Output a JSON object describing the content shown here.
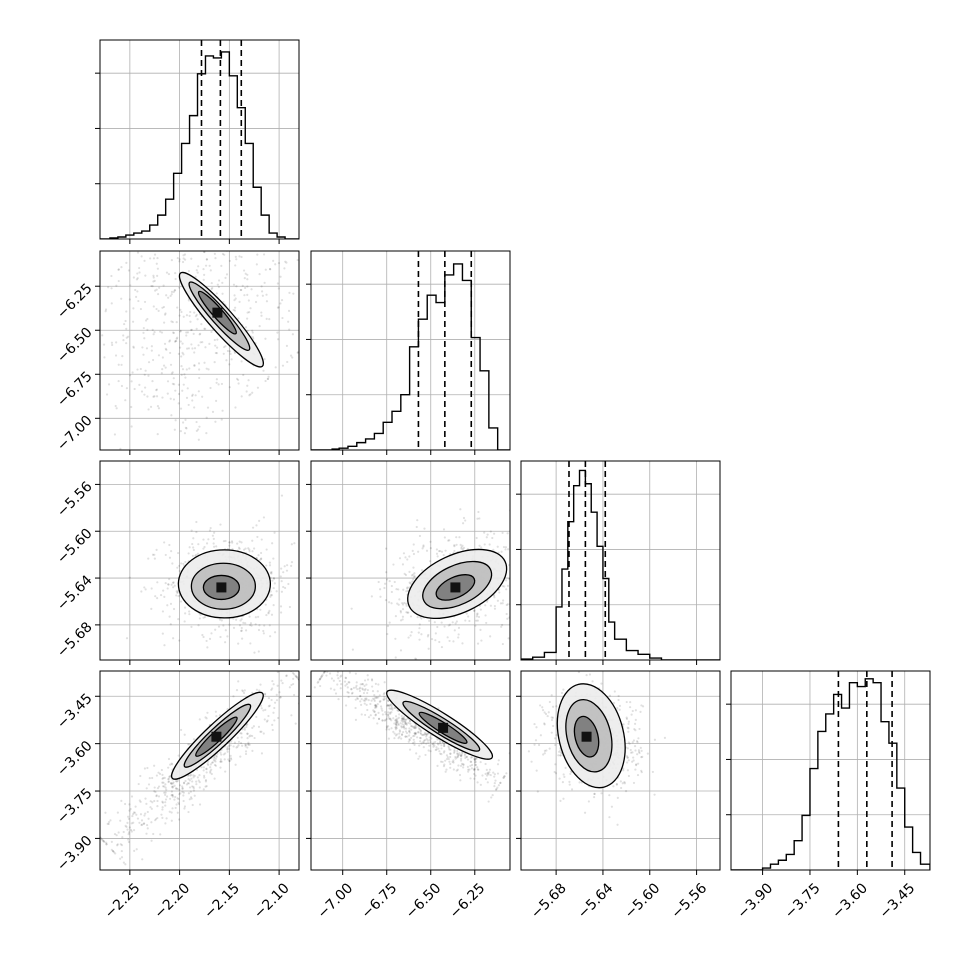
{
  "figure": {
    "background_color": "#ffffff",
    "line_color": "#000000",
    "grid_color": "#b0b0b0"
  },
  "chart_data": [
    {
      "type": "histogram",
      "panel": "diag-0",
      "parameter_index": 0,
      "xlim": [
        -2.28,
        -2.08
      ],
      "bins": [
        {
          "x0": -2.28,
          "x1": -2.27,
          "y": 0
        },
        {
          "x0": -2.27,
          "x1": -2.262,
          "y": 0.5
        },
        {
          "x0": -2.262,
          "x1": -2.254,
          "y": 1
        },
        {
          "x0": -2.254,
          "x1": -2.246,
          "y": 2
        },
        {
          "x0": -2.246,
          "x1": -2.238,
          "y": 3
        },
        {
          "x0": -2.238,
          "x1": -2.23,
          "y": 4
        },
        {
          "x0": -2.23,
          "x1": -2.222,
          "y": 7
        },
        {
          "x0": -2.222,
          "x1": -2.214,
          "y": 12
        },
        {
          "x0": -2.214,
          "x1": -2.206,
          "y": 20
        },
        {
          "x0": -2.206,
          "x1": -2.198,
          "y": 33
        },
        {
          "x0": -2.198,
          "x1": -2.19,
          "y": 48
        },
        {
          "x0": -2.19,
          "x1": -2.182,
          "y": 62
        },
        {
          "x0": -2.182,
          "x1": -2.174,
          "y": 83
        },
        {
          "x0": -2.174,
          "x1": -2.166,
          "y": 92
        },
        {
          "x0": -2.166,
          "x1": -2.158,
          "y": 91
        },
        {
          "x0": -2.158,
          "x1": -2.15,
          "y": 94
        },
        {
          "x0": -2.15,
          "x1": -2.142,
          "y": 82
        },
        {
          "x0": -2.142,
          "x1": -2.134,
          "y": 66
        },
        {
          "x0": -2.134,
          "x1": -2.126,
          "y": 48
        },
        {
          "x0": -2.126,
          "x1": -2.118,
          "y": 26
        },
        {
          "x0": -2.118,
          "x1": -2.11,
          "y": 12
        },
        {
          "x0": -2.11,
          "x1": -2.102,
          "y": 3
        },
        {
          "x0": -2.102,
          "x1": -2.094,
          "y": 1
        },
        {
          "x0": -2.094,
          "x1": -2.08,
          "y": 0
        }
      ],
      "ymax": 100,
      "quantiles": [
        -2.178,
        -2.159,
        -2.138
      ],
      "grid": true
    },
    {
      "type": "histogram",
      "panel": "diag-1",
      "parameter_index": 1,
      "xlim": [
        -7.18,
        -6.05
      ],
      "bins": [
        {
          "x0": -7.18,
          "x1": -7.06,
          "y": 0
        },
        {
          "x0": -7.06,
          "x1": -7.02,
          "y": 0.5
        },
        {
          "x0": -7.02,
          "x1": -6.97,
          "y": 1
        },
        {
          "x0": -6.97,
          "x1": -6.92,
          "y": 2
        },
        {
          "x0": -6.92,
          "x1": -6.87,
          "y": 4
        },
        {
          "x0": -6.87,
          "x1": -6.82,
          "y": 6
        },
        {
          "x0": -6.82,
          "x1": -6.77,
          "y": 9
        },
        {
          "x0": -6.77,
          "x1": -6.72,
          "y": 15
        },
        {
          "x0": -6.72,
          "x1": -6.67,
          "y": 21
        },
        {
          "x0": -6.67,
          "x1": -6.62,
          "y": 30
        },
        {
          "x0": -6.62,
          "x1": -6.57,
          "y": 56
        },
        {
          "x0": -6.57,
          "x1": -6.52,
          "y": 71
        },
        {
          "x0": -6.52,
          "x1": -6.47,
          "y": 84
        },
        {
          "x0": -6.47,
          "x1": -6.42,
          "y": 80
        },
        {
          "x0": -6.42,
          "x1": -6.37,
          "y": 95
        },
        {
          "x0": -6.37,
          "x1": -6.32,
          "y": 101
        },
        {
          "x0": -6.32,
          "x1": -6.27,
          "y": 92
        },
        {
          "x0": -6.27,
          "x1": -6.22,
          "y": 61
        },
        {
          "x0": -6.22,
          "x1": -6.17,
          "y": 43
        },
        {
          "x0": -6.17,
          "x1": -6.12,
          "y": 12
        },
        {
          "x0": -6.12,
          "x1": -6.05,
          "y": 0
        }
      ],
      "ymax": 108,
      "quantiles": [
        -6.57,
        -6.42,
        -6.27
      ],
      "grid": true
    },
    {
      "type": "histogram",
      "panel": "diag-2",
      "parameter_index": 2,
      "xlim": [
        -5.71,
        -5.54
      ],
      "bins": [
        {
          "x0": -5.71,
          "x1": -5.7,
          "y": 0.5
        },
        {
          "x0": -5.7,
          "x1": -5.69,
          "y": 1.5
        },
        {
          "x0": -5.69,
          "x1": -5.68,
          "y": 4
        },
        {
          "x0": -5.68,
          "x1": -5.675,
          "y": 28
        },
        {
          "x0": -5.675,
          "x1": -5.67,
          "y": 48
        },
        {
          "x0": -5.67,
          "x1": -5.665,
          "y": 73
        },
        {
          "x0": -5.665,
          "x1": -5.66,
          "y": 92
        },
        {
          "x0": -5.66,
          "x1": -5.655,
          "y": 100
        },
        {
          "x0": -5.655,
          "x1": -5.65,
          "y": 93
        },
        {
          "x0": -5.65,
          "x1": -5.645,
          "y": 78
        },
        {
          "x0": -5.645,
          "x1": -5.64,
          "y": 60
        },
        {
          "x0": -5.64,
          "x1": -5.635,
          "y": 43
        },
        {
          "x0": -5.635,
          "x1": -5.63,
          "y": 20
        },
        {
          "x0": -5.63,
          "x1": -5.62,
          "y": 11
        },
        {
          "x0": -5.62,
          "x1": -5.61,
          "y": 5
        },
        {
          "x0": -5.61,
          "x1": -5.6,
          "y": 3
        },
        {
          "x0": -5.6,
          "x1": -5.59,
          "y": 1
        },
        {
          "x0": -5.59,
          "x1": -5.54,
          "y": 0
        }
      ],
      "ymax": 105,
      "quantiles": [
        -5.669,
        -5.655,
        -5.638
      ],
      "grid": true
    },
    {
      "type": "histogram",
      "panel": "diag-3",
      "parameter_index": 3,
      "xlim": [
        -4.0,
        -3.37
      ],
      "bins": [
        {
          "x0": -4.0,
          "x1": -3.9,
          "y": 0
        },
        {
          "x0": -3.9,
          "x1": -3.875,
          "y": 1
        },
        {
          "x0": -3.875,
          "x1": -3.85,
          "y": 3
        },
        {
          "x0": -3.85,
          "x1": -3.825,
          "y": 5
        },
        {
          "x0": -3.825,
          "x1": -3.8,
          "y": 8
        },
        {
          "x0": -3.8,
          "x1": -3.775,
          "y": 15
        },
        {
          "x0": -3.775,
          "x1": -3.75,
          "y": 28
        },
        {
          "x0": -3.75,
          "x1": -3.725,
          "y": 52
        },
        {
          "x0": -3.725,
          "x1": -3.7,
          "y": 71
        },
        {
          "x0": -3.7,
          "x1": -3.675,
          "y": 80
        },
        {
          "x0": -3.675,
          "x1": -3.65,
          "y": 90
        },
        {
          "x0": -3.65,
          "x1": -3.625,
          "y": 83
        },
        {
          "x0": -3.625,
          "x1": -3.6,
          "y": 96
        },
        {
          "x0": -3.6,
          "x1": -3.575,
          "y": 94
        },
        {
          "x0": -3.575,
          "x1": -3.55,
          "y": 98
        },
        {
          "x0": -3.55,
          "x1": -3.525,
          "y": 96
        },
        {
          "x0": -3.525,
          "x1": -3.5,
          "y": 76
        },
        {
          "x0": -3.5,
          "x1": -3.475,
          "y": 65
        },
        {
          "x0": -3.475,
          "x1": -3.45,
          "y": 42
        },
        {
          "x0": -3.45,
          "x1": -3.425,
          "y": 22
        },
        {
          "x0": -3.425,
          "x1": -3.4,
          "y": 9
        },
        {
          "x0": -3.4,
          "x1": -3.37,
          "y": 3
        }
      ],
      "ymax": 102,
      "quantiles": [
        -3.66,
        -3.57,
        -3.49
      ],
      "grid": true
    },
    {
      "type": "scatter-density",
      "panel": "pair-1-0",
      "x_param": 0,
      "y_param": 1,
      "xlim": [
        -2.28,
        -2.08
      ],
      "ylim": [
        -7.18,
        -6.05
      ],
      "scatter": {
        "kind": "line",
        "x0": -2.24,
        "y0": -6.05,
        "x1": -2.12,
        "y1": -6.82,
        "spread_perp": 0.065,
        "spread_along": 0.16,
        "n": 650,
        "curve": 0.035
      },
      "contours": [
        {
          "level": "outer",
          "cx": -2.158,
          "cy": -6.44,
          "rx": 0.085,
          "ry": 0.018,
          "angle_deg": 45
        },
        {
          "level": "mid",
          "cx": -2.16,
          "cy": -6.42,
          "rx": 0.062,
          "ry": 0.012,
          "angle_deg": 45
        },
        {
          "level": "inner",
          "cx": -2.162,
          "cy": -6.4,
          "rx": 0.038,
          "ry": 0.008,
          "angle_deg": 45
        }
      ],
      "x_ticks": [
        -2.25,
        -2.2,
        -2.15,
        -2.1
      ],
      "y_ticks": [
        -6.25,
        -6.5,
        -6.75,
        -7.0
      ],
      "y_tick_labels": [
        "−6.25",
        "−6.50",
        "−6.75",
        "−7.00"
      ],
      "grid": true
    },
    {
      "type": "scatter-density",
      "panel": "pair-2-0",
      "x_param": 0,
      "y_param": 2,
      "xlim": [
        -2.28,
        -2.08
      ],
      "ylim": [
        -5.71,
        -5.54
      ],
      "scatter": {
        "kind": "ellipse",
        "cx": -2.15,
        "cy": -5.645,
        "sx": 0.032,
        "sy": 0.022,
        "n": 650
      },
      "contours": [
        {
          "level": "outer",
          "cx": -2.155,
          "cy": -5.645,
          "rx": 0.045,
          "ry": 0.025,
          "angle_deg": 0
        },
        {
          "level": "mid",
          "cx": -2.156,
          "cy": -5.647,
          "rx": 0.032,
          "ry": 0.017,
          "angle_deg": 0
        },
        {
          "level": "inner",
          "cx": -2.158,
          "cy": -5.648,
          "rx": 0.018,
          "ry": 0.009,
          "angle_deg": 0
        }
      ],
      "x_ticks": [
        -2.25,
        -2.2,
        -2.15,
        -2.1
      ],
      "y_ticks": [
        -5.56,
        -5.6,
        -5.64,
        -5.68
      ],
      "y_tick_labels": [
        "−5.56",
        "−5.60",
        "−5.64",
        "−5.68"
      ],
      "grid": true
    },
    {
      "type": "scatter-density",
      "panel": "pair-2-1",
      "x_param": 1,
      "y_param": 2,
      "xlim": [
        -7.18,
        -6.05
      ],
      "ylim": [
        -5.71,
        -5.54
      ],
      "scatter": {
        "kind": "ellipse",
        "cx": -6.35,
        "cy": -5.645,
        "sx": 0.2,
        "sy": 0.022,
        "n": 650,
        "tilt": 0.5
      },
      "contours": [
        {
          "level": "outer",
          "cx": -6.35,
          "cy": -5.645,
          "rx": 0.28,
          "ry": 0.026,
          "angle_deg": -25
        },
        {
          "level": "mid",
          "cx": -6.35,
          "cy": -5.646,
          "rx": 0.19,
          "ry": 0.017,
          "angle_deg": -25
        },
        {
          "level": "inner",
          "cx": -6.36,
          "cy": -5.648,
          "rx": 0.1,
          "ry": 0.009,
          "angle_deg": -25
        }
      ],
      "x_ticks": [
        -7.0,
        -6.75,
        -6.5,
        -6.25
      ],
      "y_ticks": [
        -5.56,
        -5.6,
        -5.64,
        -5.68
      ],
      "grid": true
    },
    {
      "type": "scatter-density",
      "panel": "pair-3-0",
      "x_param": 0,
      "y_param": 3,
      "xlim": [
        -2.28,
        -2.08
      ],
      "ylim": [
        -4.0,
        -3.37
      ],
      "scatter": {
        "kind": "line",
        "x0": -2.27,
        "y0": -3.93,
        "x1": -2.085,
        "y1": -3.38,
        "spread_perp": 0.012,
        "spread_along": 0.05,
        "n": 650,
        "curve": 0.0
      },
      "contours": [
        {
          "level": "outer",
          "cx": -2.162,
          "cy": -3.575,
          "rx": 0.075,
          "ry": 0.012,
          "angle_deg": -60
        },
        {
          "level": "mid",
          "cx": -2.162,
          "cy": -3.575,
          "rx": 0.055,
          "ry": 0.008,
          "angle_deg": -60
        },
        {
          "level": "inner",
          "cx": -2.163,
          "cy": -3.578,
          "rx": 0.035,
          "ry": 0.005,
          "angle_deg": -60
        }
      ],
      "x_ticks": [
        -2.25,
        -2.2,
        -2.15,
        -2.1
      ],
      "x_tick_labels": [
        "−2.25",
        "−2.20",
        "−2.15",
        "−2.10"
      ],
      "y_ticks": [
        -3.45,
        -3.6,
        -3.75,
        -3.9
      ],
      "y_tick_labels": [
        "−3.45",
        "−3.60",
        "−3.75",
        "−3.90"
      ],
      "grid": true
    },
    {
      "type": "scatter-density",
      "panel": "pair-3-1",
      "x_param": 1,
      "y_param": 3,
      "xlim": [
        -7.18,
        -6.05
      ],
      "ylim": [
        -4.0,
        -3.37
      ],
      "scatter": {
        "kind": "line",
        "x0": -7.1,
        "y0": -3.37,
        "x1": -6.1,
        "y1": -3.72,
        "spread_perp": 0.04,
        "spread_along": 0.2,
        "n": 650,
        "curve": 0.08
      },
      "contours": [
        {
          "level": "outer",
          "cx": -6.45,
          "cy": -3.54,
          "rx": 0.3,
          "ry": 0.045,
          "angle_deg": 22
        },
        {
          "level": "mid",
          "cx": -6.44,
          "cy": -3.545,
          "rx": 0.2,
          "ry": 0.028,
          "angle_deg": 22
        },
        {
          "level": "inner",
          "cx": -6.43,
          "cy": -3.55,
          "rx": 0.11,
          "ry": 0.015,
          "angle_deg": 22
        }
      ],
      "x_ticks": [
        -7.0,
        -6.75,
        -6.5,
        -6.25
      ],
      "x_tick_labels": [
        "−7.00",
        "−6.75",
        "−6.50",
        "−6.25"
      ],
      "y_ticks": [
        -3.45,
        -3.6,
        -3.75,
        -3.9
      ],
      "grid": true
    },
    {
      "type": "scatter-density",
      "panel": "pair-3-2",
      "x_param": 2,
      "y_param": 3,
      "xlim": [
        -5.71,
        -5.54
      ],
      "ylim": [
        -4.0,
        -3.37
      ],
      "scatter": {
        "kind": "ellipse",
        "cx": -5.648,
        "cy": -3.585,
        "sx": 0.02,
        "sy": 0.075,
        "n": 650,
        "tilt": -0.3
      },
      "contours": [
        {
          "level": "outer",
          "cx": -5.65,
          "cy": -3.575,
          "rx": 0.036,
          "ry": 0.135,
          "angle_deg": -14
        },
        {
          "level": "mid",
          "cx": -5.652,
          "cy": -3.575,
          "rx": 0.025,
          "ry": 0.095,
          "angle_deg": -14
        },
        {
          "level": "inner",
          "cx": -5.654,
          "cy": -3.578,
          "rx": 0.014,
          "ry": 0.055,
          "angle_deg": -14
        }
      ],
      "x_ticks": [
        -5.68,
        -5.64,
        -5.6,
        -5.56
      ],
      "x_tick_labels": [
        "−5.68",
        "−5.64",
        "−5.60",
        "−5.56"
      ],
      "y_ticks": [
        -3.45,
        -3.6,
        -3.75,
        -3.9
      ],
      "grid": true
    }
  ],
  "diag_x_tick_labels_3": [
    "−3.90",
    "−3.75",
    "−3.60",
    "−3.45"
  ],
  "diag_x_ticks_3": [
    -3.9,
    -3.75,
    -3.6,
    -3.45
  ]
}
